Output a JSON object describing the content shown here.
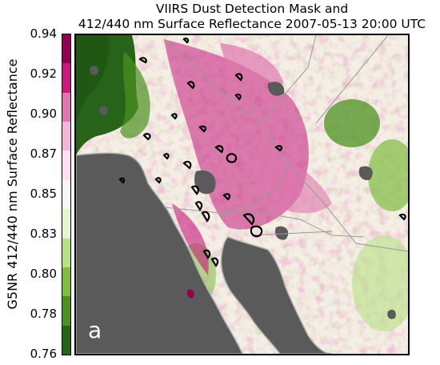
{
  "title": {
    "line1": "VIIRS Dust Detection Mask and",
    "line2": "412/440 nm Surface Reflectance 2007-05-13 20:00 UTC"
  },
  "colorbar": {
    "label": "G5NR 412/440 nm Surface Reflectance",
    "ticks": [
      "0.94",
      "0.92",
      "0.90",
      "0.87",
      "0.85",
      "0.83",
      "0.80",
      "0.78",
      "0.76"
    ],
    "colors": [
      "#8e0152",
      "#c51b7d",
      "#de77ae",
      "#f1b6da",
      "#fde0ef",
      "#f7f7f7",
      "#e6f5d0",
      "#b8e186",
      "#7fbc41",
      "#4d9221",
      "#276419"
    ],
    "min": 0.76,
    "max": 0.94
  },
  "map": {
    "panel_label": "a",
    "colors": {
      "ocean": "#5a5a5a",
      "coast_outline": "#b0b0b0",
      "dust_contour": "#000000",
      "borders": "#9a9a9a"
    }
  }
}
